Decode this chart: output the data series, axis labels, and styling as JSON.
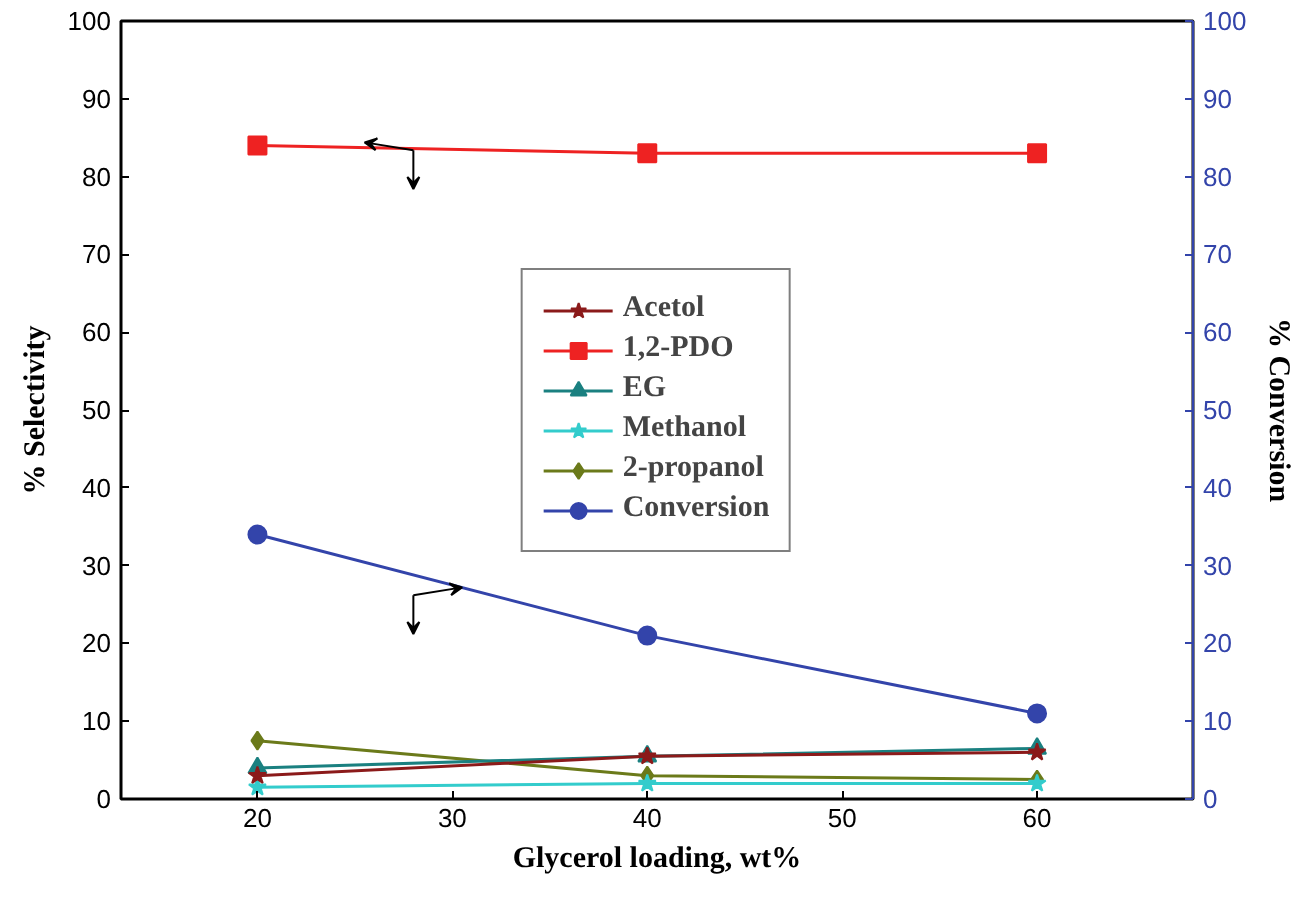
{
  "chart_data": {
    "type": "line",
    "xlabel": "Glycerol loading, wt%",
    "ylabel": "% Selectivity",
    "y2label": "% Conversion",
    "x": [
      20,
      40,
      60
    ],
    "xlim": [
      13,
      68
    ],
    "xticks": [
      20,
      30,
      40,
      50,
      60
    ],
    "ylim": [
      0,
      100
    ],
    "yticks": [
      0,
      10,
      20,
      30,
      40,
      50,
      60,
      70,
      80,
      90,
      100
    ],
    "y2lim": [
      0,
      100
    ],
    "y2ticks": [
      0,
      10,
      20,
      30,
      40,
      50,
      60,
      70,
      80,
      90,
      100
    ],
    "grid": false,
    "legend": "center",
    "line_style": "solid",
    "series": [
      {
        "name": "Acetol",
        "color": "#8b1a1a",
        "marker": "star",
        "values": [
          3,
          5.5,
          6
        ]
      },
      {
        "name": "1,2-PDO",
        "color": "#ee2222",
        "marker": "square",
        "values": [
          84,
          83,
          83
        ]
      },
      {
        "name": "EG",
        "color": "#1a8080",
        "marker": "triangle",
        "values": [
          4,
          5.5,
          6.5
        ]
      },
      {
        "name": "Methanol",
        "color": "#33cccc",
        "marker": "star",
        "values": [
          1.5,
          2,
          2
        ]
      },
      {
        "name": "2-propanol",
        "color": "#6b7a1a",
        "marker": "diamond",
        "values": [
          7.5,
          3,
          2.5
        ]
      },
      {
        "name": "Conversion",
        "color": "#3344aa",
        "marker": "circle",
        "axis": "y2",
        "values": [
          34,
          21,
          11
        ]
      }
    ]
  }
}
